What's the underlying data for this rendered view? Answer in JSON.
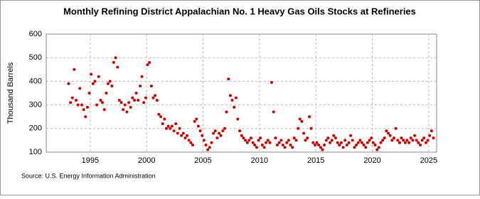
{
  "chart_data": {
    "type": "scatter",
    "title": "Monthly Refining District Appalachian No. 1 Heavy Gas Oils Stocks at Refineries",
    "y_label": "Thousand Barrels",
    "source": "Source: U.S. Energy Information Administration",
    "color": "#cc0000",
    "grid": true,
    "xlim": [
      1991.1,
      2025.7
    ],
    "xticks": [
      1995,
      2000,
      2005,
      2010,
      2015,
      2020,
      2025
    ],
    "ylim": [
      100,
      600
    ],
    "yticks": [
      100,
      200,
      300,
      400,
      500,
      600
    ],
    "x": [
      1993.08,
      1993.25,
      1993.42,
      1993.58,
      1993.75,
      1993.92,
      1994.08,
      1994.25,
      1994.42,
      1994.58,
      1994.75,
      1994.92,
      1995.08,
      1995.25,
      1995.42,
      1995.58,
      1995.75,
      1995.92,
      1996.08,
      1996.25,
      1996.42,
      1996.58,
      1996.75,
      1996.92,
      1997.08,
      1997.25,
      1997.42,
      1997.58,
      1997.75,
      1997.92,
      1998.08,
      1998.25,
      1998.42,
      1998.58,
      1998.75,
      1998.92,
      1999.08,
      1999.25,
      1999.42,
      1999.58,
      1999.75,
      1999.92,
      2000.08,
      2000.25,
      2000.42,
      2000.58,
      2000.75,
      2000.92,
      2001.08,
      2001.25,
      2001.42,
      2001.58,
      2001.75,
      2001.92,
      2002.08,
      2002.25,
      2002.42,
      2002.58,
      2002.75,
      2002.92,
      2003.08,
      2003.25,
      2003.42,
      2003.58,
      2003.75,
      2003.92,
      2004.08,
      2004.25,
      2004.42,
      2004.58,
      2004.75,
      2004.92,
      2005.08,
      2005.25,
      2005.42,
      2005.58,
      2005.75,
      2005.92,
      2006.08,
      2006.25,
      2006.42,
      2006.58,
      2006.75,
      2006.92,
      2007.08,
      2007.25,
      2007.42,
      2007.58,
      2007.75,
      2007.92,
      2008.08,
      2008.25,
      2008.42,
      2008.58,
      2008.75,
      2008.92,
      2009.08,
      2009.25,
      2009.42,
      2009.58,
      2009.75,
      2009.92,
      2010.08,
      2010.25,
      2010.42,
      2010.58,
      2010.75,
      2010.92,
      2011.08,
      2011.25,
      2011.42,
      2011.58,
      2011.75,
      2011.92,
      2012.08,
      2012.25,
      2012.42,
      2012.58,
      2012.75,
      2012.92,
      2013.08,
      2013.25,
      2013.42,
      2013.58,
      2013.75,
      2013.92,
      2014.08,
      2014.25,
      2014.42,
      2014.58,
      2014.75,
      2014.92,
      2015.08,
      2015.25,
      2015.42,
      2015.58,
      2015.75,
      2015.92,
      2016.08,
      2016.25,
      2016.42,
      2016.58,
      2016.75,
      2016.92,
      2017.08,
      2017.25,
      2017.42,
      2017.58,
      2017.75,
      2017.92,
      2018.08,
      2018.25,
      2018.42,
      2018.58,
      2018.75,
      2018.92,
      2019.08,
      2019.25,
      2019.42,
      2019.58,
      2019.75,
      2019.92,
      2020.08,
      2020.25,
      2020.42,
      2020.58,
      2020.75,
      2020.92,
      2021.08,
      2021.25,
      2021.42,
      2021.58,
      2021.75,
      2021.92,
      2022.08,
      2022.25,
      2022.42,
      2022.58,
      2022.75,
      2022.92,
      2023.08,
      2023.25,
      2023.42,
      2023.58,
      2023.75,
      2023.92,
      2024.08,
      2024.25,
      2024.42,
      2024.58,
      2024.75,
      2024.92,
      2025.08,
      2025.25,
      2025.42
    ],
    "values": [
      390,
      310,
      330,
      450,
      320,
      300,
      370,
      300,
      280,
      250,
      290,
      350,
      430,
      390,
      400,
      300,
      420,
      320,
      310,
      280,
      350,
      390,
      400,
      380,
      480,
      500,
      460,
      320,
      310,
      280,
      300,
      270,
      310,
      290,
      330,
      320,
      350,
      320,
      380,
      420,
      310,
      330,
      470,
      480,
      380,
      330,
      340,
      320,
      260,
      250,
      220,
      240,
      200,
      210,
      200,
      210,
      190,
      220,
      180,
      200,
      170,
      180,
      160,
      170,
      150,
      140,
      130,
      230,
      240,
      210,
      190,
      170,
      150,
      130,
      110,
      120,
      140,
      180,
      190,
      160,
      180,
      170,
      190,
      200,
      270,
      410,
      340,
      320,
      290,
      330,
      240,
      190,
      170,
      160,
      150,
      140,
      150,
      160,
      140,
      130,
      120,
      150,
      160,
      130,
      120,
      140,
      150,
      140,
      395,
      270,
      160,
      130,
      140,
      150,
      130,
      120,
      140,
      150,
      130,
      120,
      160,
      150,
      200,
      240,
      230,
      180,
      150,
      160,
      250,
      200,
      140,
      130,
      140,
      130,
      120,
      110,
      130,
      150,
      160,
      140,
      150,
      170,
      160,
      140,
      130,
      140,
      120,
      150,
      130,
      140,
      170,
      150,
      120,
      130,
      140,
      150,
      140,
      130,
      120,
      140,
      150,
      160,
      140,
      130,
      110,
      120,
      140,
      150,
      160,
      190,
      180,
      170,
      150,
      160,
      200,
      150,
      140,
      160,
      150,
      140,
      150,
      140,
      160,
      150,
      170,
      150,
      140,
      130,
      150,
      160,
      140,
      150,
      170,
      190,
      160
    ]
  }
}
